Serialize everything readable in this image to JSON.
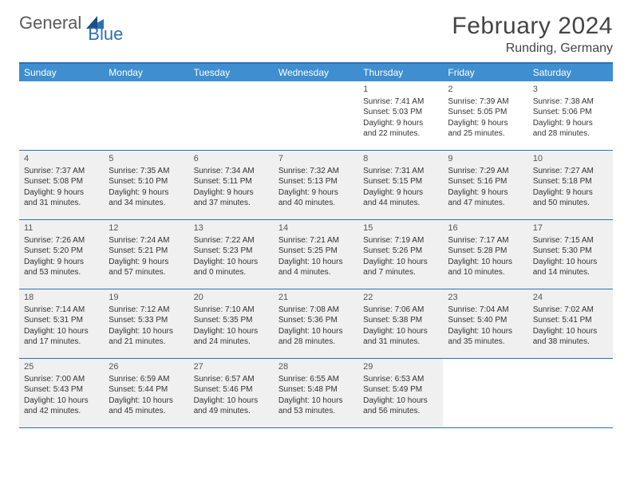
{
  "logo": {
    "part1": "General",
    "part2": "Blue"
  },
  "title": "February 2024",
  "location": "Runding, Germany",
  "colors": {
    "header_bar": "#3e8ed0",
    "border": "#2e6fb5",
    "shaded_cell": "#f0f0f0",
    "text": "#333333",
    "title_text": "#444444",
    "logo_gray": "#5a5a5a",
    "logo_blue": "#2e6fb5",
    "white": "#ffffff"
  },
  "typography": {
    "month_title_size": 30,
    "location_size": 16,
    "day_header_size": 12,
    "daynum_size": 11,
    "cell_text_size": 10
  },
  "day_headers": [
    "Sunday",
    "Monday",
    "Tuesday",
    "Wednesday",
    "Thursday",
    "Friday",
    "Saturday"
  ],
  "weeks": [
    [
      {
        "blank": true
      },
      {
        "blank": true
      },
      {
        "blank": true
      },
      {
        "blank": true
      },
      {
        "day": "1",
        "sunrise": "Sunrise: 7:41 AM",
        "sunset": "Sunset: 5:03 PM",
        "dl1": "Daylight: 9 hours",
        "dl2": "and 22 minutes."
      },
      {
        "day": "2",
        "sunrise": "Sunrise: 7:39 AM",
        "sunset": "Sunset: 5:05 PM",
        "dl1": "Daylight: 9 hours",
        "dl2": "and 25 minutes."
      },
      {
        "day": "3",
        "sunrise": "Sunrise: 7:38 AM",
        "sunset": "Sunset: 5:06 PM",
        "dl1": "Daylight: 9 hours",
        "dl2": "and 28 minutes."
      }
    ],
    [
      {
        "day": "4",
        "shaded": true,
        "sunrise": "Sunrise: 7:37 AM",
        "sunset": "Sunset: 5:08 PM",
        "dl1": "Daylight: 9 hours",
        "dl2": "and 31 minutes."
      },
      {
        "day": "5",
        "shaded": true,
        "sunrise": "Sunrise: 7:35 AM",
        "sunset": "Sunset: 5:10 PM",
        "dl1": "Daylight: 9 hours",
        "dl2": "and 34 minutes."
      },
      {
        "day": "6",
        "shaded": true,
        "sunrise": "Sunrise: 7:34 AM",
        "sunset": "Sunset: 5:11 PM",
        "dl1": "Daylight: 9 hours",
        "dl2": "and 37 minutes."
      },
      {
        "day": "7",
        "shaded": true,
        "sunrise": "Sunrise: 7:32 AM",
        "sunset": "Sunset: 5:13 PM",
        "dl1": "Daylight: 9 hours",
        "dl2": "and 40 minutes."
      },
      {
        "day": "8",
        "shaded": true,
        "sunrise": "Sunrise: 7:31 AM",
        "sunset": "Sunset: 5:15 PM",
        "dl1": "Daylight: 9 hours",
        "dl2": "and 44 minutes."
      },
      {
        "day": "9",
        "shaded": true,
        "sunrise": "Sunrise: 7:29 AM",
        "sunset": "Sunset: 5:16 PM",
        "dl1": "Daylight: 9 hours",
        "dl2": "and 47 minutes."
      },
      {
        "day": "10",
        "shaded": true,
        "sunrise": "Sunrise: 7:27 AM",
        "sunset": "Sunset: 5:18 PM",
        "dl1": "Daylight: 9 hours",
        "dl2": "and 50 minutes."
      }
    ],
    [
      {
        "day": "11",
        "shaded": true,
        "sunrise": "Sunrise: 7:26 AM",
        "sunset": "Sunset: 5:20 PM",
        "dl1": "Daylight: 9 hours",
        "dl2": "and 53 minutes."
      },
      {
        "day": "12",
        "shaded": true,
        "sunrise": "Sunrise: 7:24 AM",
        "sunset": "Sunset: 5:21 PM",
        "dl1": "Daylight: 9 hours",
        "dl2": "and 57 minutes."
      },
      {
        "day": "13",
        "shaded": true,
        "sunrise": "Sunrise: 7:22 AM",
        "sunset": "Sunset: 5:23 PM",
        "dl1": "Daylight: 10 hours",
        "dl2": "and 0 minutes."
      },
      {
        "day": "14",
        "shaded": true,
        "sunrise": "Sunrise: 7:21 AM",
        "sunset": "Sunset: 5:25 PM",
        "dl1": "Daylight: 10 hours",
        "dl2": "and 4 minutes."
      },
      {
        "day": "15",
        "shaded": true,
        "sunrise": "Sunrise: 7:19 AM",
        "sunset": "Sunset: 5:26 PM",
        "dl1": "Daylight: 10 hours",
        "dl2": "and 7 minutes."
      },
      {
        "day": "16",
        "shaded": true,
        "sunrise": "Sunrise: 7:17 AM",
        "sunset": "Sunset: 5:28 PM",
        "dl1": "Daylight: 10 hours",
        "dl2": "and 10 minutes."
      },
      {
        "day": "17",
        "shaded": true,
        "sunrise": "Sunrise: 7:15 AM",
        "sunset": "Sunset: 5:30 PM",
        "dl1": "Daylight: 10 hours",
        "dl2": "and 14 minutes."
      }
    ],
    [
      {
        "day": "18",
        "shaded": true,
        "sunrise": "Sunrise: 7:14 AM",
        "sunset": "Sunset: 5:31 PM",
        "dl1": "Daylight: 10 hours",
        "dl2": "and 17 minutes."
      },
      {
        "day": "19",
        "shaded": true,
        "sunrise": "Sunrise: 7:12 AM",
        "sunset": "Sunset: 5:33 PM",
        "dl1": "Daylight: 10 hours",
        "dl2": "and 21 minutes."
      },
      {
        "day": "20",
        "shaded": true,
        "sunrise": "Sunrise: 7:10 AM",
        "sunset": "Sunset: 5:35 PM",
        "dl1": "Daylight: 10 hours",
        "dl2": "and 24 minutes."
      },
      {
        "day": "21",
        "shaded": true,
        "sunrise": "Sunrise: 7:08 AM",
        "sunset": "Sunset: 5:36 PM",
        "dl1": "Daylight: 10 hours",
        "dl2": "and 28 minutes."
      },
      {
        "day": "22",
        "shaded": true,
        "sunrise": "Sunrise: 7:06 AM",
        "sunset": "Sunset: 5:38 PM",
        "dl1": "Daylight: 10 hours",
        "dl2": "and 31 minutes."
      },
      {
        "day": "23",
        "shaded": true,
        "sunrise": "Sunrise: 7:04 AM",
        "sunset": "Sunset: 5:40 PM",
        "dl1": "Daylight: 10 hours",
        "dl2": "and 35 minutes."
      },
      {
        "day": "24",
        "shaded": true,
        "sunrise": "Sunrise: 7:02 AM",
        "sunset": "Sunset: 5:41 PM",
        "dl1": "Daylight: 10 hours",
        "dl2": "and 38 minutes."
      }
    ],
    [
      {
        "day": "25",
        "shaded": true,
        "sunrise": "Sunrise: 7:00 AM",
        "sunset": "Sunset: 5:43 PM",
        "dl1": "Daylight: 10 hours",
        "dl2": "and 42 minutes."
      },
      {
        "day": "26",
        "shaded": true,
        "sunrise": "Sunrise: 6:59 AM",
        "sunset": "Sunset: 5:44 PM",
        "dl1": "Daylight: 10 hours",
        "dl2": "and 45 minutes."
      },
      {
        "day": "27",
        "shaded": true,
        "sunrise": "Sunrise: 6:57 AM",
        "sunset": "Sunset: 5:46 PM",
        "dl1": "Daylight: 10 hours",
        "dl2": "and 49 minutes."
      },
      {
        "day": "28",
        "shaded": true,
        "sunrise": "Sunrise: 6:55 AM",
        "sunset": "Sunset: 5:48 PM",
        "dl1": "Daylight: 10 hours",
        "dl2": "and 53 minutes."
      },
      {
        "day": "29",
        "shaded": true,
        "sunrise": "Sunrise: 6:53 AM",
        "sunset": "Sunset: 5:49 PM",
        "dl1": "Daylight: 10 hours",
        "dl2": "and 56 minutes."
      },
      {
        "blank": true
      },
      {
        "blank": true
      }
    ]
  ]
}
